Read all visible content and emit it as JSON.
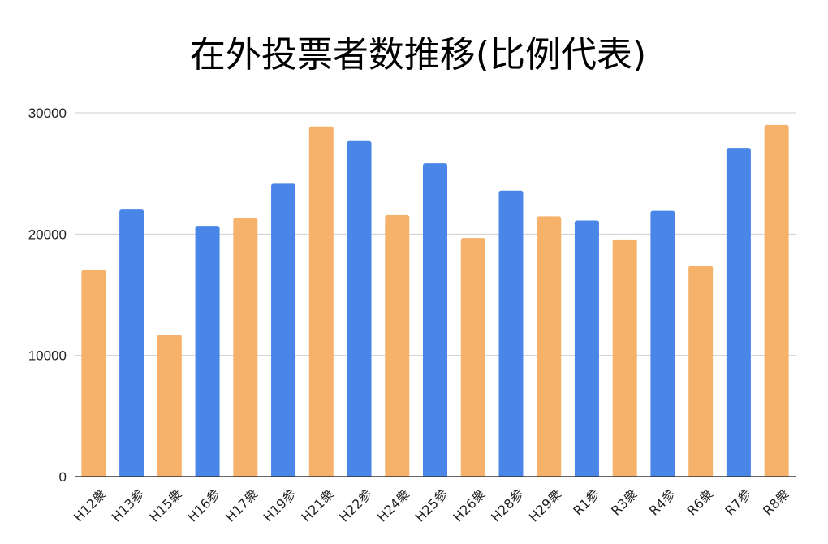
{
  "chart_data": {
    "type": "bar",
    "title": "在外投票者数推移(比例代表)",
    "xlabel": "",
    "ylabel": "",
    "ylim": [
      0,
      30000
    ],
    "yticks": [
      0,
      10000,
      20000,
      30000
    ],
    "ytick_labels": [
      "0",
      "10000",
      "20000",
      "30000"
    ],
    "grid": true,
    "legend": "none",
    "colors": {
      "衆": "#F6B26B",
      "参": "#4A86E8"
    },
    "categories": [
      "H12衆",
      "H13参",
      "H15衆",
      "H16参",
      "H17衆",
      "H19参",
      "H21衆",
      "H22参",
      "H24衆",
      "H25参",
      "H26衆",
      "H28参",
      "H29衆",
      "R1参",
      "R3衆",
      "R4参",
      "R6衆",
      "R7参",
      "R8衆"
    ],
    "values": [
      17050,
      22020,
      11710,
      20680,
      21330,
      24150,
      28880,
      27670,
      21570,
      25840,
      19680,
      23590,
      21470,
      21130,
      19560,
      21920,
      17390,
      27110,
      29000
    ],
    "bar_colors": [
      "#F6B26B",
      "#4A86E8",
      "#F6B26B",
      "#4A86E8",
      "#F6B26B",
      "#4A86E8",
      "#F6B26B",
      "#4A86E8",
      "#F6B26B",
      "#4A86E8",
      "#F6B26B",
      "#4A86E8",
      "#F6B26B",
      "#4A86E8",
      "#F6B26B",
      "#4A86E8",
      "#F6B26B",
      "#4A86E8",
      "#F6B26B"
    ]
  }
}
